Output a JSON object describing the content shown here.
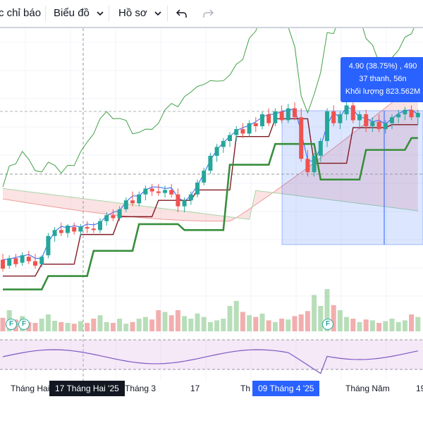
{
  "toolbar": {
    "indicators_label": "c chỉ báo",
    "chart_label": "Biểu đồ",
    "template_label": "Hồ sơ",
    "undo_icon": "undo-icon",
    "redo_icon": "redo-icon"
  },
  "tooltip": {
    "line1": "4.90 (38.75%) , 490",
    "line2": "37 thanh, 56n",
    "line3": "Khối lượng 823.562M"
  },
  "badges": [
    "F",
    "F",
    "F"
  ],
  "x_axis": {
    "labels": [
      "Tháng Hai",
      "Tháng 3",
      "17",
      "Th",
      "Tháng Năm",
      "19"
    ],
    "crosshair_label": "17 Tháng Hai '25",
    "range_label": "09 Tháng 4 '25"
  },
  "colors": {
    "up": "#26a69a",
    "down": "#ef5350",
    "tenkan": "#2962ff",
    "kijun": "#801922",
    "chikou": "#43a047",
    "lagging_bold": "#388e3c",
    "cloud_up": "#a5d6a7",
    "cloud_down": "#ef9a9a",
    "rsi_line": "#7e57c2",
    "selection": "#2962ff"
  },
  "chart_data": {
    "type": "candlestick",
    "note_series": [
      "Ichimoku tenkan",
      "Ichimoku kijun",
      "Ichimoku chikou",
      "Senkou span A",
      "Senkou span B",
      "Volume",
      "RSI"
    ],
    "candles": [
      {
        "o": 0.94,
        "h": 0.98,
        "l": 0.86,
        "c": 0.88
      },
      {
        "o": 0.9,
        "h": 0.97,
        "l": 0.88,
        "c": 0.95
      },
      {
        "o": 0.95,
        "h": 0.98,
        "l": 0.89,
        "c": 0.91
      },
      {
        "o": 0.92,
        "h": 0.99,
        "l": 0.9,
        "c": 0.97
      },
      {
        "o": 0.96,
        "h": 1.0,
        "l": 0.91,
        "c": 0.93
      },
      {
        "o": 0.93,
        "h": 0.98,
        "l": 0.88,
        "c": 0.9
      },
      {
        "o": 0.91,
        "h": 0.97,
        "l": 0.89,
        "c": 0.96
      },
      {
        "o": 0.97,
        "h": 1.12,
        "l": 0.95,
        "c": 1.1
      },
      {
        "o": 1.1,
        "h": 1.16,
        "l": 1.06,
        "c": 1.14
      },
      {
        "o": 1.14,
        "h": 1.19,
        "l": 1.1,
        "c": 1.12
      },
      {
        "o": 1.12,
        "h": 1.18,
        "l": 1.09,
        "c": 1.17
      },
      {
        "o": 1.16,
        "h": 1.19,
        "l": 1.11,
        "c": 1.13
      },
      {
        "o": 1.13,
        "h": 1.18,
        "l": 1.1,
        "c": 1.16
      },
      {
        "o": 1.16,
        "h": 1.2,
        "l": 1.12,
        "c": 1.15
      },
      {
        "o": 1.15,
        "h": 1.19,
        "l": 1.12,
        "c": 1.14
      },
      {
        "o": 1.14,
        "h": 1.22,
        "l": 1.12,
        "c": 1.2
      },
      {
        "o": 1.2,
        "h": 1.26,
        "l": 1.17,
        "c": 1.24
      },
      {
        "o": 1.24,
        "h": 1.28,
        "l": 1.2,
        "c": 1.22
      },
      {
        "o": 1.22,
        "h": 1.3,
        "l": 1.2,
        "c": 1.28
      },
      {
        "o": 1.28,
        "h": 1.36,
        "l": 1.26,
        "c": 1.34
      },
      {
        "o": 1.34,
        "h": 1.4,
        "l": 1.3,
        "c": 1.32
      },
      {
        "o": 1.32,
        "h": 1.4,
        "l": 1.3,
        "c": 1.38
      },
      {
        "o": 1.38,
        "h": 1.44,
        "l": 1.34,
        "c": 1.42
      },
      {
        "o": 1.42,
        "h": 1.45,
        "l": 1.37,
        "c": 1.4
      },
      {
        "o": 1.4,
        "h": 1.45,
        "l": 1.37,
        "c": 1.39
      },
      {
        "o": 1.39,
        "h": 1.44,
        "l": 1.36,
        "c": 1.41
      },
      {
        "o": 1.41,
        "h": 1.45,
        "l": 1.36,
        "c": 1.38
      },
      {
        "o": 1.38,
        "h": 1.42,
        "l": 1.26,
        "c": 1.3
      },
      {
        "o": 1.3,
        "h": 1.36,
        "l": 1.26,
        "c": 1.34
      },
      {
        "o": 1.34,
        "h": 1.4,
        "l": 1.31,
        "c": 1.38
      },
      {
        "o": 1.38,
        "h": 1.48,
        "l": 1.36,
        "c": 1.46
      },
      {
        "o": 1.46,
        "h": 1.56,
        "l": 1.44,
        "c": 1.54
      },
      {
        "o": 1.54,
        "h": 1.66,
        "l": 1.52,
        "c": 1.64
      },
      {
        "o": 1.64,
        "h": 1.72,
        "l": 1.6,
        "c": 1.7
      },
      {
        "o": 1.7,
        "h": 1.76,
        "l": 1.66,
        "c": 1.74
      },
      {
        "o": 1.74,
        "h": 1.8,
        "l": 1.7,
        "c": 1.78
      },
      {
        "o": 1.78,
        "h": 1.84,
        "l": 1.74,
        "c": 1.82
      },
      {
        "o": 1.82,
        "h": 1.86,
        "l": 1.76,
        "c": 1.79
      },
      {
        "o": 1.79,
        "h": 1.88,
        "l": 1.77,
        "c": 1.86
      },
      {
        "o": 1.86,
        "h": 1.9,
        "l": 1.8,
        "c": 1.84
      },
      {
        "o": 1.84,
        "h": 1.94,
        "l": 1.82,
        "c": 1.92
      },
      {
        "o": 1.92,
        "h": 1.96,
        "l": 1.84,
        "c": 1.86
      },
      {
        "o": 1.86,
        "h": 1.96,
        "l": 1.84,
        "c": 1.94
      },
      {
        "o": 1.94,
        "h": 1.98,
        "l": 1.86,
        "c": 1.88
      },
      {
        "o": 1.88,
        "h": 1.99,
        "l": 1.86,
        "c": 1.96
      },
      {
        "o": 1.96,
        "h": 2.0,
        "l": 1.88,
        "c": 1.9
      },
      {
        "o": 1.9,
        "h": 1.96,
        "l": 1.6,
        "c": 1.62
      },
      {
        "o": 1.62,
        "h": 1.68,
        "l": 1.5,
        "c": 1.53
      },
      {
        "o": 1.53,
        "h": 1.66,
        "l": 1.5,
        "c": 1.64
      },
      {
        "o": 1.64,
        "h": 1.76,
        "l": 1.6,
        "c": 1.74
      },
      {
        "o": 1.74,
        "h": 1.96,
        "l": 1.7,
        "c": 1.94
      },
      {
        "o": 1.94,
        "h": 1.98,
        "l": 1.84,
        "c": 1.86
      },
      {
        "o": 1.86,
        "h": 1.94,
        "l": 1.82,
        "c": 1.92
      },
      {
        "o": 1.92,
        "h": 2.02,
        "l": 1.88,
        "c": 1.98
      },
      {
        "o": 1.98,
        "h": 2.0,
        "l": 1.86,
        "c": 1.88
      },
      {
        "o": 1.88,
        "h": 1.94,
        "l": 1.82,
        "c": 1.92
      },
      {
        "o": 1.92,
        "h": 1.95,
        "l": 1.8,
        "c": 1.84
      },
      {
        "o": 1.84,
        "h": 1.9,
        "l": 1.8,
        "c": 1.87
      },
      {
        "o": 1.87,
        "h": 1.92,
        "l": 1.8,
        "c": 1.82
      },
      {
        "o": 1.82,
        "h": 1.88,
        "l": 1.79,
        "c": 1.86
      },
      {
        "o": 1.86,
        "h": 1.92,
        "l": 1.82,
        "c": 1.9
      },
      {
        "o": 1.9,
        "h": 1.95,
        "l": 1.86,
        "c": 1.92
      },
      {
        "o": 1.92,
        "h": 1.97,
        "l": 1.88,
        "c": 1.95
      },
      {
        "o": 1.95,
        "h": 1.98,
        "l": 1.88,
        "c": 1.9
      },
      {
        "o": 1.9,
        "h": 1.95,
        "l": 1.85,
        "c": 1.93
      }
    ],
    "volume": [
      0.32,
      0.5,
      0.28,
      0.36,
      0.22,
      0.2,
      0.3,
      0.4,
      0.25,
      0.22,
      0.2,
      0.18,
      0.24,
      0.2,
      0.3,
      0.38,
      0.22,
      0.2,
      0.3,
      0.18,
      0.22,
      0.3,
      0.34,
      0.28,
      0.5,
      0.46,
      0.38,
      0.5,
      0.36,
      0.3,
      0.42,
      0.34,
      0.22,
      0.26,
      0.3,
      0.6,
      0.72,
      0.46,
      0.38,
      0.34,
      0.42,
      0.26,
      0.22,
      0.3,
      0.28,
      0.36,
      0.4,
      0.48,
      0.86,
      0.6,
      1.0,
      0.62,
      0.5,
      0.34,
      0.3,
      0.22,
      0.28,
      0.26,
      0.2,
      0.24,
      0.3,
      0.22,
      0.26,
      0.4,
      0.34
    ],
    "ylim": [
      0.6,
      2.5
    ]
  }
}
